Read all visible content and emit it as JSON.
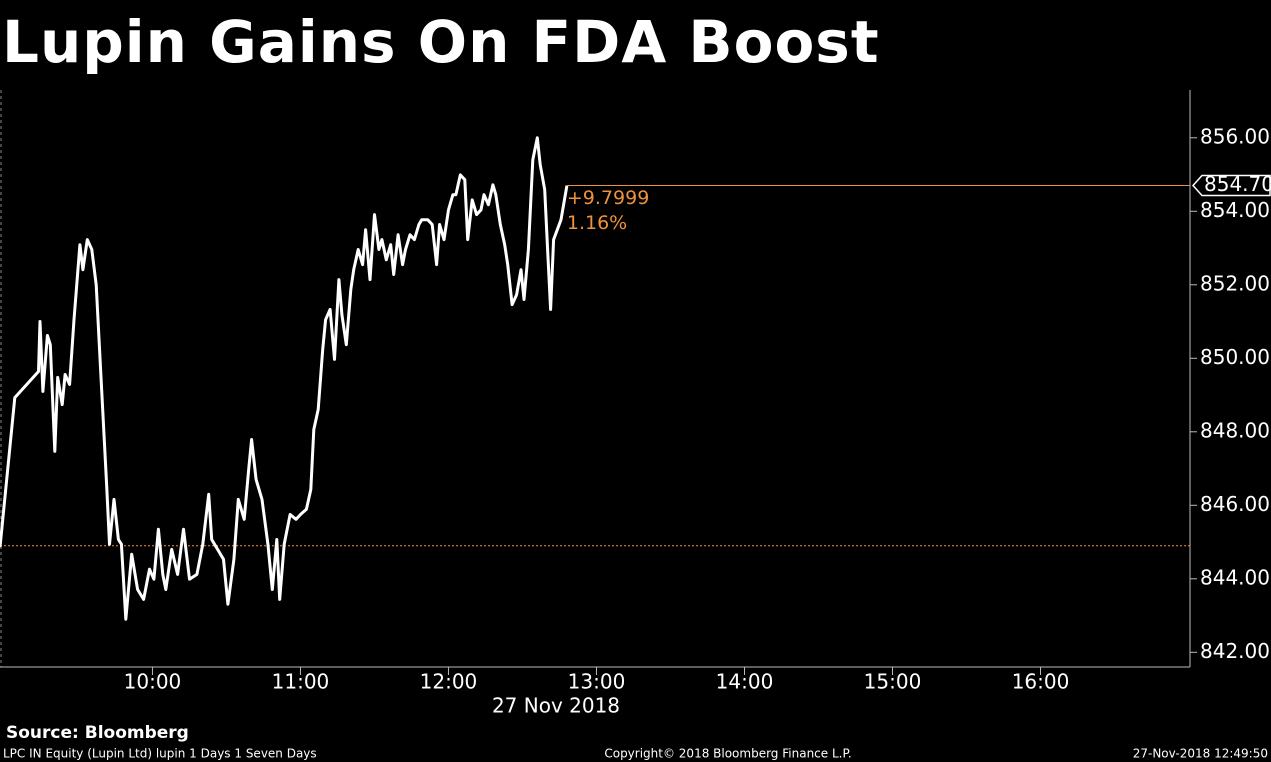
{
  "chart_data": {
    "type": "line",
    "title": "Lupin Gains On FDA Boost",
    "x_label": "27 Nov 2018",
    "source": "Source: Bloomberg",
    "footer_left": "LPC IN Equity (Lupin Ltd) lupin 1 Days 1 Seven Days",
    "footer_center": "Copyright© 2018 Bloomberg Finance L.P.",
    "footer_right": "27-Nov-2018 12:49:50",
    "color": "#ffffff",
    "x": [
      8.97,
      9.07,
      9.23,
      9.24,
      9.26,
      9.29,
      9.31,
      9.34,
      9.36,
      9.39,
      9.41,
      9.44,
      9.47,
      9.51,
      9.53,
      9.56,
      9.59,
      9.62,
      9.65,
      9.69,
      9.71,
      9.74,
      9.77,
      9.79,
      9.82,
      9.86,
      9.9,
      9.94,
      9.98,
      10.01,
      10.04,
      10.07,
      10.09,
      10.13,
      10.17,
      10.21,
      10.25,
      10.3,
      10.34,
      10.38,
      10.4,
      10.44,
      10.48,
      10.51,
      10.55,
      10.58,
      10.62,
      10.65,
      10.67,
      10.7,
      10.74,
      10.78,
      10.81,
      10.84,
      10.86,
      10.89,
      10.93,
      10.97,
      11.0,
      11.04,
      11.07,
      11.09,
      11.12,
      11.15,
      11.17,
      11.2,
      11.23,
      11.26,
      11.28,
      11.31,
      11.34,
      11.36,
      11.39,
      11.42,
      11.44,
      11.47,
      11.5,
      11.53,
      11.55,
      11.58,
      11.61,
      11.63,
      11.66,
      11.69,
      11.71,
      11.74,
      11.77,
      11.8,
      11.82,
      11.86,
      11.89,
      11.92,
      11.94,
      11.97,
      12.0,
      12.03,
      12.05,
      12.08,
      12.11,
      12.13,
      12.16,
      12.19,
      12.22,
      12.24,
      12.27,
      12.3,
      12.32,
      12.35,
      12.38,
      12.4,
      12.43,
      12.46,
      12.49,
      12.51,
      12.54,
      12.57,
      12.6,
      12.62,
      12.65,
      12.67,
      12.69,
      12.71,
      12.76,
      12.8
    ],
    "values": [
      844.86,
      848.93,
      849.64,
      851.0,
      849.1,
      850.62,
      850.37,
      847.47,
      849.48,
      848.74,
      849.56,
      849.29,
      851.05,
      853.09,
      852.41,
      853.23,
      852.96,
      852.0,
      849.69,
      846.57,
      844.94,
      846.16,
      845.07,
      844.94,
      842.9,
      844.67,
      843.71,
      843.44,
      844.26,
      843.99,
      845.35,
      844.12,
      843.71,
      844.8,
      844.12,
      845.35,
      843.99,
      844.12,
      844.94,
      846.3,
      845.07,
      844.8,
      844.53,
      843.31,
      844.53,
      846.16,
      845.62,
      846.98,
      847.79,
      846.7,
      846.16,
      844.94,
      843.71,
      845.07,
      843.44,
      844.94,
      845.75,
      845.62,
      845.75,
      845.89,
      846.43,
      848.06,
      848.61,
      850.24,
      851.05,
      851.33,
      849.97,
      852.14,
      851.19,
      850.37,
      851.87,
      852.41,
      852.96,
      852.55,
      853.5,
      852.14,
      853.91,
      852.96,
      853.23,
      852.68,
      853.09,
      852.28,
      853.36,
      852.55,
      852.96,
      853.36,
      853.23,
      853.64,
      853.77,
      853.77,
      853.64,
      852.55,
      853.64,
      853.23,
      854.04,
      854.45,
      854.45,
      854.99,
      854.86,
      853.23,
      854.31,
      853.91,
      854.04,
      854.45,
      854.18,
      854.72,
      854.45,
      853.64,
      853.09,
      852.55,
      851.46,
      851.73,
      852.41,
      851.6,
      852.96,
      855.4,
      856.0,
      855.27,
      854.59,
      852.96,
      851.33,
      853.23,
      853.77,
      854.7
    ],
    "last_price": {
      "value": 854.7,
      "label": "854.70"
    },
    "change": {
      "value": 9.7999,
      "label": "+9.7999"
    },
    "change_pct": {
      "value": 1.16,
      "label": "1.16%"
    },
    "previous_close": 844.9,
    "reference_color": "#f0923a",
    "xlim": [
      8.97,
      17.01
    ],
    "ylim": [
      841.6,
      857.3
    ],
    "xticks": [
      {
        "value": 10,
        "label": "10:00"
      },
      {
        "value": 11,
        "label": "11:00"
      },
      {
        "value": 12,
        "label": "12:00"
      },
      {
        "value": 13,
        "label": "13:00"
      },
      {
        "value": 14,
        "label": "14:00"
      },
      {
        "value": 15,
        "label": "15:00"
      },
      {
        "value": 16,
        "label": "16:00"
      }
    ],
    "yticks": [
      {
        "value": 842,
        "label": "842.00"
      },
      {
        "value": 844,
        "label": "844.00"
      },
      {
        "value": 846,
        "label": "846.00"
      },
      {
        "value": 848,
        "label": "848.00"
      },
      {
        "value": 850,
        "label": "850.00"
      },
      {
        "value": 852,
        "label": "852.00"
      },
      {
        "value": 854,
        "label": "854.00"
      },
      {
        "value": 856,
        "label": "856.00"
      }
    ]
  }
}
